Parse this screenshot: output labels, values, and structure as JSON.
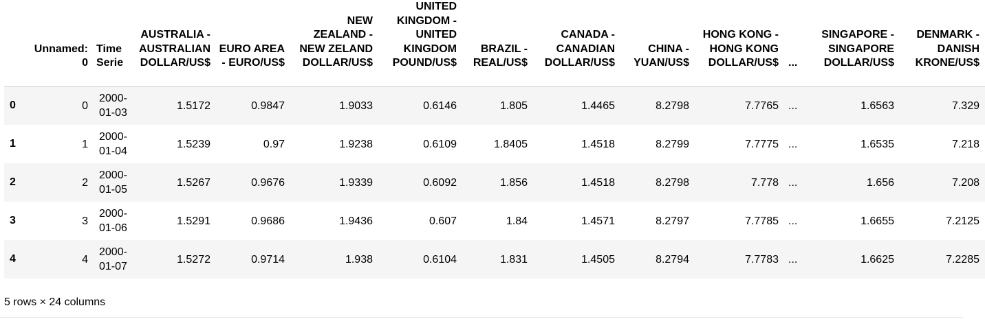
{
  "table": {
    "columns": [
      "",
      "Unnamed: 0",
      "Time Serie",
      "AUSTRALIA - AUSTRALIAN DOLLAR/US$",
      "EURO AREA - EURO/US$",
      "NEW ZEALAND - NEW ZELAND DOLLAR/US$",
      "UNITED KINGDOM - UNITED KINGDOM POUND/US$",
      "BRAZIL - REAL/US$",
      "CANADA - CANADIAN DOLLAR/US$",
      "CHINA - YUAN/US$",
      "HONG KONG - HONG KONG DOLLAR/US$",
      "...",
      "SINGAPORE - SINGAPORE DOLLAR/US$",
      "DENMARK - DANISH KRONE/US$"
    ],
    "rows": [
      [
        "0",
        "0",
        "2000-01-03",
        "1.5172",
        "0.9847",
        "1.9033",
        "0.6146",
        "1.805",
        "1.4465",
        "8.2798",
        "7.7765",
        "...",
        "1.6563",
        "7.329"
      ],
      [
        "1",
        "1",
        "2000-01-04",
        "1.5239",
        "0.97",
        "1.9238",
        "0.6109",
        "1.8405",
        "1.4518",
        "8.2799",
        "7.7775",
        "...",
        "1.6535",
        "7.218"
      ],
      [
        "2",
        "2",
        "2000-01-05",
        "1.5267",
        "0.9676",
        "1.9339",
        "0.6092",
        "1.856",
        "1.4518",
        "8.2798",
        "7.778",
        "...",
        "1.656",
        "7.208"
      ],
      [
        "3",
        "3",
        "2000-01-06",
        "1.5291",
        "0.9686",
        "1.9436",
        "0.607",
        "1.84",
        "1.4571",
        "8.2797",
        "7.7785",
        "...",
        "1.6655",
        "7.2125"
      ],
      [
        "4",
        "4",
        "2000-01-07",
        "1.5272",
        "0.9714",
        "1.938",
        "0.6104",
        "1.831",
        "1.4505",
        "8.2794",
        "7.7783",
        "...",
        "1.6625",
        "7.2285"
      ]
    ]
  },
  "footer": {
    "shape_text": "5 rows × 24 columns"
  }
}
